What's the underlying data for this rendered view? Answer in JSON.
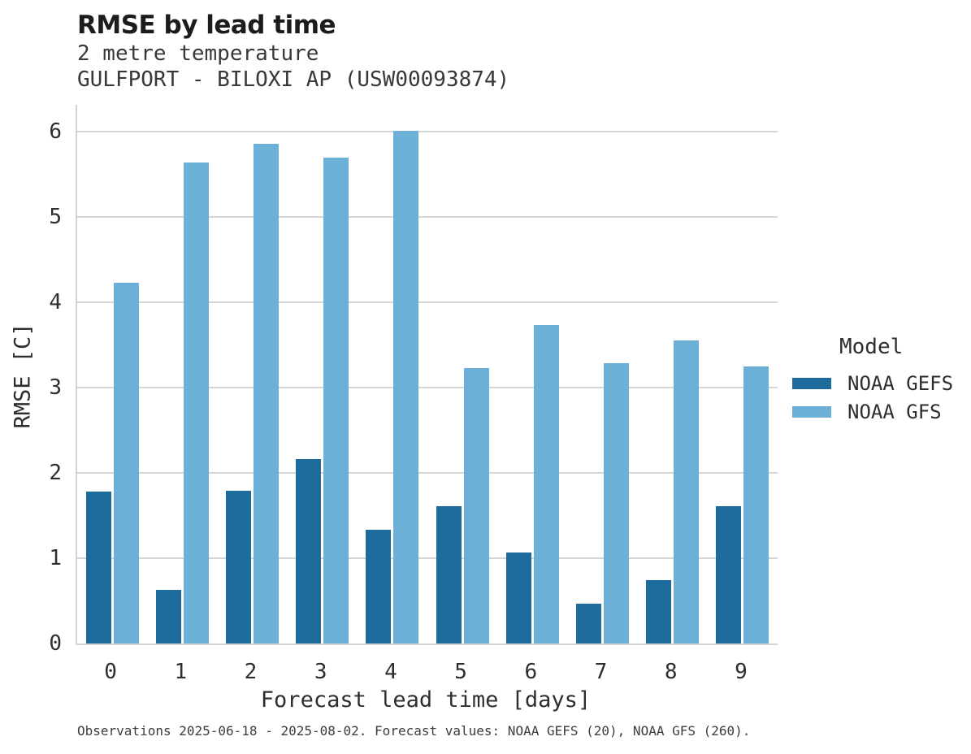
{
  "header": {
    "title": "RMSE by lead time",
    "subtitle_line1": "2 metre temperature",
    "subtitle_line2": "GULFPORT - BILOXI AP (USW00093874)"
  },
  "legend": {
    "title": "Model",
    "entries": [
      {
        "label": "NOAA GEFS",
        "color": "#1e6c9b"
      },
      {
        "label": "NOAA GFS",
        "color": "#6cb0d7"
      }
    ]
  },
  "footer": {
    "text": "Observations 2025-06-18 - 2025-08-02. Forecast values: NOAA GEFS (20), NOAA GFS (260)."
  },
  "colors": {
    "noaa_gefs": "#1e6c9b",
    "noaa_gfs": "#6cb0d7",
    "gridline": "#d6d6d6",
    "axis_line": "#d2d2d2",
    "title_text": "#1c1c1c",
    "body_text": "#2e2e2e"
  },
  "chart_data": {
    "type": "bar",
    "title": "RMSE by lead time",
    "subtitle": [
      "2 metre temperature",
      "GULFPORT - BILOXI AP (USW00093874)"
    ],
    "xlabel": "Forecast lead time [days]",
    "ylabel": "RMSE [C]",
    "categories": [
      "0",
      "1",
      "2",
      "3",
      "4",
      "5",
      "6",
      "7",
      "8",
      "9"
    ],
    "series": [
      {
        "name": "NOAA GEFS",
        "color": "#1e6c9b",
        "values": [
          1.78,
          0.63,
          1.79,
          2.16,
          1.33,
          1.61,
          1.07,
          0.47,
          0.74,
          1.61
        ]
      },
      {
        "name": "NOAA GFS",
        "color": "#6cb0d7",
        "values": [
          4.23,
          5.63,
          5.85,
          5.69,
          6.01,
          3.23,
          3.73,
          3.28,
          3.55,
          3.25
        ]
      }
    ],
    "ylim": [
      0,
      6.31
    ],
    "yticks": [
      0,
      1,
      2,
      3,
      4,
      5,
      6
    ],
    "grid": true,
    "legend_position": "right",
    "legend_title": "Model",
    "footnote": "Observations 2025-06-18 - 2025-08-02. Forecast values: NOAA GEFS (20), NOAA GFS (260)."
  }
}
